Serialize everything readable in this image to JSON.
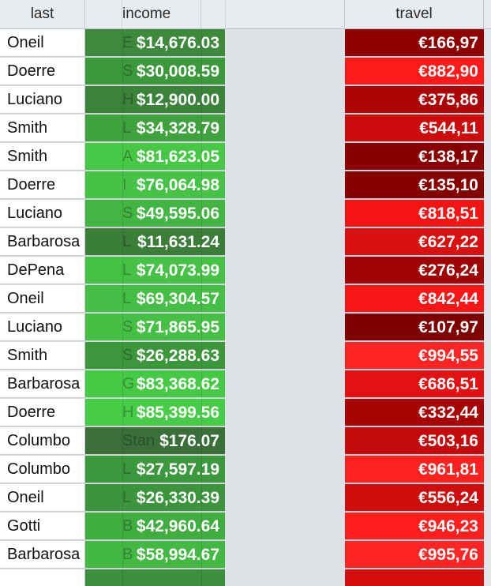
{
  "header": {
    "last": "last",
    "income": "income",
    "travel": "travel"
  },
  "rows": [
    {
      "last": "Oneil",
      "ghost": "E",
      "income": "$14,676.03",
      "travel": "€166,97",
      "inc_color": "#3d8a3d",
      "trv_color": "#8e0000"
    },
    {
      "last": "Doerre",
      "ghost": "S",
      "income": "$30,008.59",
      "travel": "€882,90",
      "inc_color": "#3b983b",
      "trv_color": "#ff1a1a"
    },
    {
      "last": "Luciano",
      "ghost": "H",
      "income": "$12,900.00",
      "travel": "€375,86",
      "inc_color": "#3b823b",
      "trv_color": "#ad0505"
    },
    {
      "last": "Smith",
      "ghost": "L",
      "income": "$34,328.79",
      "travel": "€544,11",
      "inc_color": "#3fa23f",
      "trv_color": "#cc0c0c"
    },
    {
      "last": "Smith",
      "ghost": "A",
      "income": "$81,623.05",
      "travel": "€138,17",
      "inc_color": "#46c846",
      "trv_color": "#8a0000"
    },
    {
      "last": "Doerre",
      "ghost": "I",
      "income": "$76,064.98",
      "travel": "€135,10",
      "inc_color": "#46c346",
      "trv_color": "#870000"
    },
    {
      "last": "Luciano",
      "ghost": "S",
      "income": "$49,595.06",
      "travel": "€818,51",
      "inc_color": "#42b542",
      "trv_color": "#f51414"
    },
    {
      "last": "Barbarosa",
      "ghost": "L",
      "income": "$11,631.24",
      "travel": "€627,22",
      "inc_color": "#3a7e3a",
      "trv_color": "#d91010"
    },
    {
      "last": "DePena",
      "ghost": "L",
      "income": "$74,073.99",
      "travel": "€276,24",
      "inc_color": "#45c145",
      "trv_color": "#a00303"
    },
    {
      "last": "Oneil",
      "ghost": "L",
      "income": "$69,304.57",
      "travel": "€842,44",
      "inc_color": "#44be44",
      "trv_color": "#f81616"
    },
    {
      "last": "Luciano",
      "ghost": "S",
      "income": "$71,865.95",
      "travel": "€107,97",
      "inc_color": "#45c045",
      "trv_color": "#7e0000"
    },
    {
      "last": "Smith",
      "ghost": "S",
      "income": "$26,288.63",
      "travel": "€994,55",
      "inc_color": "#3c963c",
      "trv_color": "#ff2424"
    },
    {
      "last": "Barbarosa",
      "ghost": "G",
      "income": "$83,368.62",
      "travel": "€686,51",
      "inc_color": "#46ca46",
      "trv_color": "#e21212"
    },
    {
      "last": "Doerre",
      "ghost": "H",
      "income": "$85,399.56",
      "travel": "€332,44",
      "inc_color": "#47cc47",
      "trv_color": "#a80404"
    },
    {
      "last": "Columbo",
      "ghost": "Stan",
      "income": "$176.07",
      "travel": "€503,16",
      "inc_color": "#3a6f3a",
      "trv_color": "#c40a0a"
    },
    {
      "last": "Columbo",
      "ghost": "L",
      "income": "$27,597.19",
      "travel": "€961,81",
      "inc_color": "#3c983c",
      "trv_color": "#ff2020"
    },
    {
      "last": "Oneil",
      "ghost": "L",
      "income": "$26,330.39",
      "travel": "€556,24",
      "inc_color": "#3c953c",
      "trv_color": "#cf0d0d"
    },
    {
      "last": "Gotti",
      "ghost": "B",
      "income": "$42,960.64",
      "travel": "€946,23",
      "inc_color": "#40ad40",
      "trv_color": "#ff1e1e"
    },
    {
      "last": "Barbarosa",
      "ghost": "B",
      "income": "$58,994.67",
      "travel": "€995,76",
      "inc_color": "#43b943",
      "trv_color": "#ff2525"
    },
    {
      "last": "",
      "ghost": "",
      "income": "",
      "travel": "",
      "inc_color": "#3c8f3c",
      "trv_color": "#d40e0e"
    }
  ]
}
